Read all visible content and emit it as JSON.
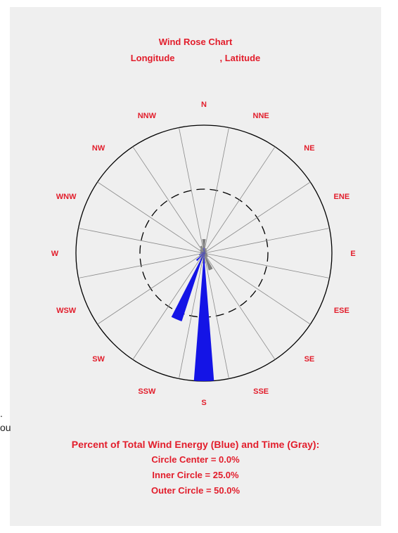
{
  "page": {
    "left_edge_text": [
      ".",
      "ou"
    ]
  },
  "chart_data": {
    "type": "wind-rose",
    "title": "Wind Rose Chart",
    "longitude_label": "Longitude",
    "latitude_label": ", Latitude",
    "directions": [
      "N",
      "NNE",
      "NE",
      "ENE",
      "E",
      "ESE",
      "SE",
      "SSE",
      "S",
      "SSW",
      "SW",
      "WSW",
      "W",
      "WNW",
      "NW",
      "NNW"
    ],
    "series": [
      {
        "name": "Time",
        "color": "#808080",
        "values": [
          5.5,
          2.0,
          1.5,
          1.0,
          1.2,
          1.5,
          2.0,
          7.0,
          4.0,
          3.0,
          2.0,
          1.0,
          1.5,
          1.5,
          2.0,
          3.0
        ]
      },
      {
        "name": "Wind Energy",
        "color": "#1414e6",
        "values": [
          2.0,
          1.0,
          0.5,
          0.5,
          0.8,
          0.5,
          0.5,
          1.0,
          50.0,
          28.0,
          4.0,
          2.0,
          1.0,
          1.0,
          0.5,
          0.5
        ]
      }
    ],
    "rings": {
      "center": 0.0,
      "inner": 25.0,
      "outer": 50.0
    },
    "caption": "Percent of Total Wind Energy (Blue) and Time (Gray):",
    "center_label": "Circle Center = 0.0%",
    "inner_label": "Inner Circle = 25.0%",
    "outer_label": "Outer Circle = 50.0%"
  }
}
